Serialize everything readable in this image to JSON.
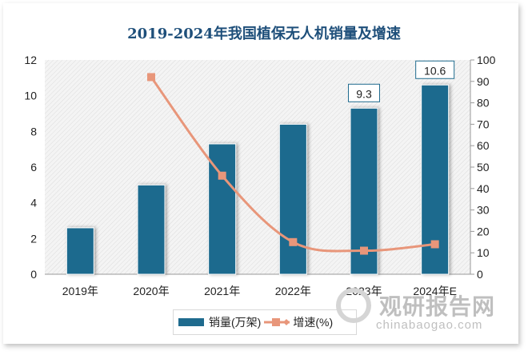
{
  "chart_data": {
    "type": "bar",
    "title": "2019-2024年我国植保无人机销量及增速",
    "categories": [
      "2019年",
      "2020年",
      "2021年",
      "2022年",
      "2023年",
      "2024年E"
    ],
    "series": [
      {
        "name": "销量(万架)",
        "type": "bar",
        "axis": "left",
        "color": "#1f6b8e",
        "values": [
          2.6,
          5.0,
          7.3,
          8.4,
          9.3,
          10.6
        ]
      },
      {
        "name": "增速(%)",
        "type": "line",
        "axis": "right",
        "color": "#e8967a",
        "values": [
          null,
          92,
          46,
          15,
          11,
          14
        ]
      }
    ],
    "data_labels": [
      {
        "category": "2023年",
        "text": "9.3"
      },
      {
        "category": "2024年E",
        "text": "10.6"
      }
    ],
    "ylim_left": [
      0,
      12
    ],
    "yticks_left": [
      "0",
      "2",
      "4",
      "6",
      "8",
      "10",
      "12"
    ],
    "ylim_right": [
      0,
      100
    ],
    "yticks_right": [
      "0",
      "10",
      "20",
      "30",
      "40",
      "50",
      "60",
      "70",
      "80",
      "90",
      "100"
    ],
    "legend": "bottom",
    "grid": false
  },
  "watermark": {
    "name": "观研报告网",
    "url": "chinabaogao.com"
  }
}
